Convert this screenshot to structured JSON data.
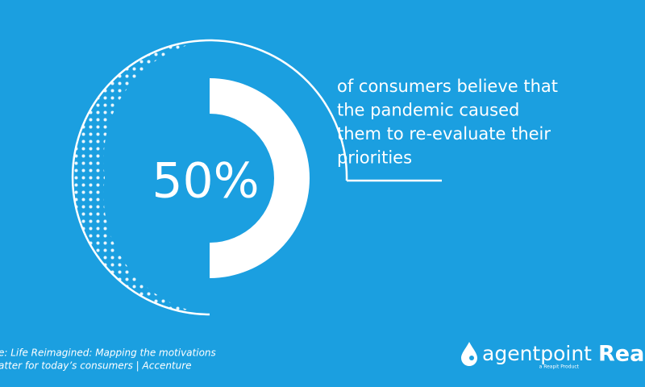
{
  "chart_data": {
    "type": "donut",
    "values": [
      50
    ],
    "value_labels": [
      "50%"
    ],
    "color": "#ffffff",
    "annotation": [
      "of consumers believe that",
      "the pandemic caused",
      "them to re-evaluate their",
      "priorities"
    ]
  },
  "source": [
    "e: Life Reimagined: Mapping the motivations",
    "atter for today’s consumers | Accenture"
  ],
  "logos": {
    "agentpoint": "agentpoint",
    "tagline": "a Reapit Product",
    "reapit": "Reap"
  }
}
